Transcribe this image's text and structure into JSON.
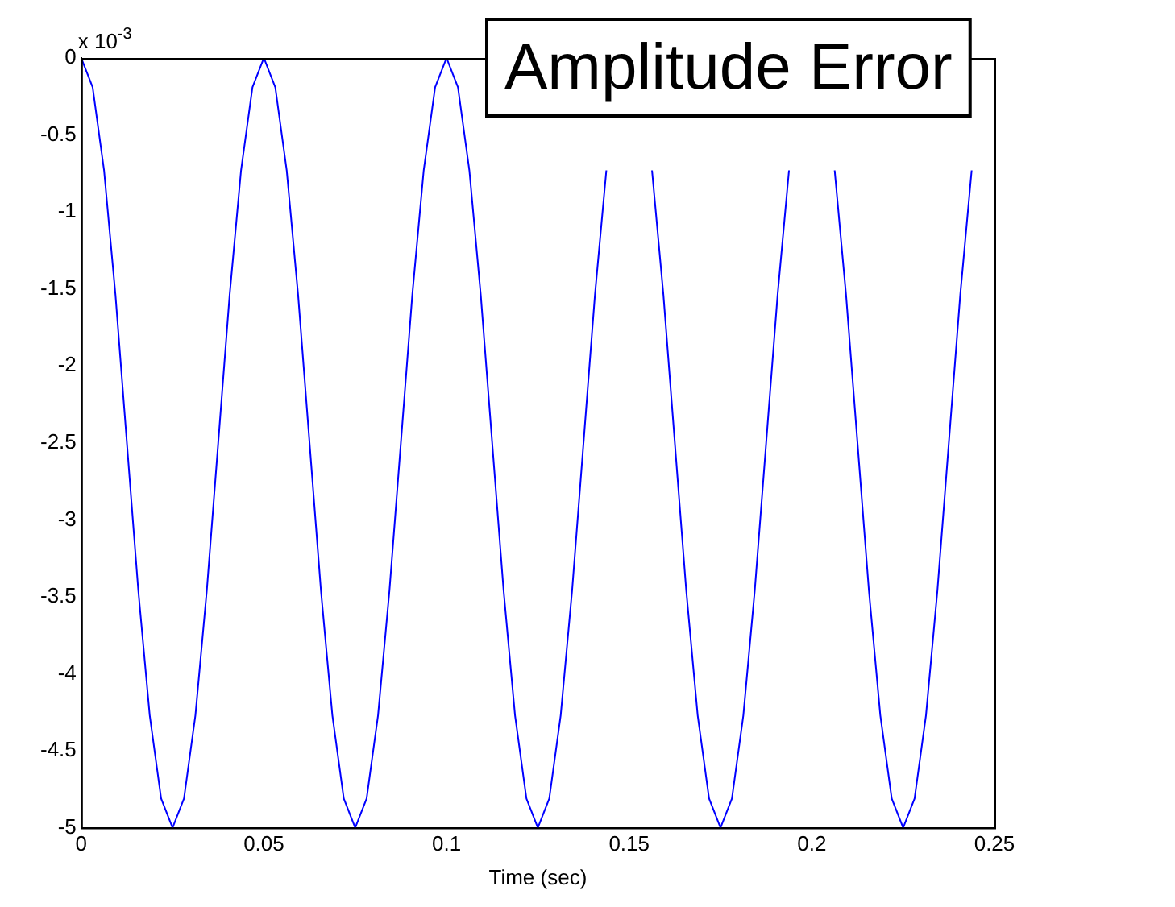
{
  "chart_data": {
    "type": "line",
    "title": "Amplitude Error",
    "xlabel": "Time (sec)",
    "annotations": [
      "x 10$^{-3}$"
    ],
    "x": [
      0,
      0.003125,
      0.00625,
      0.009375,
      0.0125,
      0.015625,
      0.01875,
      0.021875,
      0.025,
      0.028125,
      0.03125,
      0.034375,
      0.0375,
      0.040625,
      0.04375,
      0.046875,
      0.05,
      0.053125,
      0.05625,
      0.059375,
      0.0625,
      0.065625,
      0.06875,
      0.071875,
      0.075,
      0.078125,
      0.08125,
      0.084375,
      0.0875,
      0.090625,
      0.09375,
      0.096875,
      0.1,
      0.103125,
      0.10625,
      0.109375,
      0.1125,
      0.115625,
      0.11875,
      0.121875,
      0.125,
      0.128125,
      0.13125,
      0.134375,
      0.1375,
      0.140625,
      0.14375,
      0.146875,
      0.15,
      0.153125,
      0.15625,
      0.159375,
      0.1625,
      0.165625,
      0.16875,
      0.171875,
      0.175,
      0.178125,
      0.18125,
      0.184375,
      0.1875,
      0.190625,
      0.19375,
      0.196875,
      0.2,
      0.203125,
      0.20625,
      0.209375,
      0.2125,
      0.215625,
      0.21875,
      0.221875,
      0.225,
      0.228125,
      0.23125,
      0.234375,
      0.2375,
      0.240625,
      0.24375
    ],
    "series": [
      {
        "color": "#0000ff",
        "values": [
          0,
          -0.19,
          -0.73,
          -1.54,
          -2.5,
          -3.46,
          -4.27,
          -4.81,
          -5,
          -4.81,
          -4.27,
          -3.46,
          -2.5,
          -1.54,
          -0.73,
          -0.19,
          0,
          -0.19,
          -0.73,
          -1.54,
          -2.5,
          -3.46,
          -4.27,
          -4.81,
          -5,
          -4.81,
          -4.27,
          -3.46,
          -2.5,
          -1.54,
          -0.73,
          -0.19,
          0,
          -0.19,
          -0.73,
          -1.54,
          -2.5,
          -3.46,
          -4.27,
          -4.81,
          -5,
          -4.81,
          -4.27,
          -3.46,
          -2.5,
          -1.54,
          -0.73,
          null,
          null,
          null,
          -0.73,
          -1.54,
          -2.5,
          -3.46,
          -4.27,
          -4.81,
          -5,
          -4.81,
          -4.27,
          -3.46,
          -2.5,
          -1.54,
          -0.73,
          null,
          null,
          null,
          -0.73,
          -1.54,
          -2.5,
          -3.46,
          -4.27,
          -4.81,
          -5,
          -4.81,
          -4.27,
          -3.46,
          -2.5,
          -1.54,
          -0.73
        ]
      }
    ],
    "xlim": [
      0,
      0.25
    ],
    "xticks": [
      0,
      0.05,
      0.1,
      0.15,
      0.2,
      0.25
    ],
    "ylim": [
      -5,
      0
    ],
    "yticks": [
      0,
      -0.5,
      -1,
      -1.5,
      -2,
      -2.5,
      -3,
      -3.5,
      -4,
      -4.5,
      -5
    ],
    "grid": false,
    "legend": false,
    "marker": "none",
    "line_style": "solid"
  }
}
